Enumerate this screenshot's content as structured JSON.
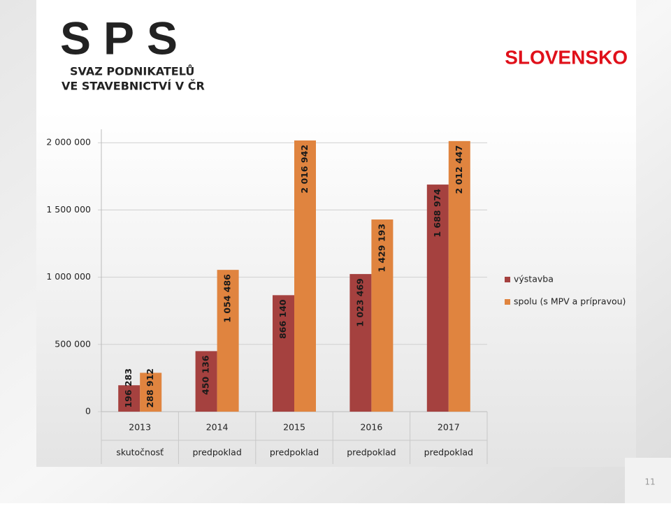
{
  "slide": {
    "logo_letters": [
      "S",
      "P",
      "S"
    ],
    "org_line1": "SVAZ PODNIKATELŮ",
    "org_line2": "VE STAVEBNICTVÍ V ČR",
    "heading": "SLOVENSKO",
    "page_number": 11
  },
  "chart_data": {
    "type": "bar",
    "categories": [
      "2013",
      "2014",
      "2015",
      "2016",
      "2017"
    ],
    "category_notes": [
      "skutočnosť",
      "predpoklad",
      "predpoklad",
      "predpoklad",
      "predpoklad"
    ],
    "series": [
      {
        "name": "výstavba",
        "color": "#a5413f",
        "values": [
          196283,
          450136,
          866140,
          1023469,
          1688974
        ],
        "value_labels": [
          "196 283",
          "450 136",
          "866 140",
          "1 023 469",
          "1 688 974"
        ]
      },
      {
        "name": "spolu (s MPV a prípravou)",
        "color": "#e0843f",
        "values": [
          288912,
          1054486,
          2016942,
          1429193,
          2012447
        ],
        "value_labels": [
          "288 912",
          "1 054 486",
          "2 016 942",
          "1 429 193",
          "2 012 447"
        ]
      }
    ],
    "ylim": [
      0,
      2100000
    ],
    "yticks": [
      0,
      {
        "value": 500000,
        "label": "500 000"
      },
      {
        "value": 1000000,
        "label": "1 000 000"
      },
      {
        "value": 1500000,
        "label": "1 500 000"
      },
      {
        "value": 2000000,
        "label": "2 000 000"
      }
    ],
    "legend": "right"
  }
}
